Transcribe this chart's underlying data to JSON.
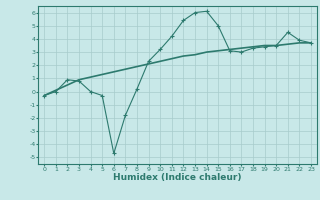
{
  "title": "",
  "xlabel": "Humidex (Indice chaleur)",
  "ylabel": "",
  "x_all": [
    0,
    1,
    2,
    3,
    4,
    5,
    6,
    7,
    8,
    9,
    10,
    11,
    12,
    13,
    14,
    15,
    16,
    17,
    18,
    19,
    20,
    21,
    22,
    23
  ],
  "y_wavy": [
    -0.3,
    0.0,
    0.9,
    0.8,
    0.0,
    -0.3,
    -4.7,
    -1.8,
    0.2,
    2.3,
    3.2,
    4.2,
    5.4,
    6.0,
    6.1,
    5.0,
    3.1,
    3.0,
    3.3,
    3.4,
    3.5,
    4.5,
    3.9,
    3.7
  ],
  "y_linear": [
    -0.3,
    0.1,
    0.5,
    0.9,
    1.1,
    1.3,
    1.5,
    1.7,
    1.9,
    2.1,
    2.3,
    2.5,
    2.7,
    2.8,
    3.0,
    3.1,
    3.2,
    3.3,
    3.4,
    3.5,
    3.5,
    3.6,
    3.7,
    3.7
  ],
  "line_color": "#2d7a6e",
  "bg_color": "#c8e8e8",
  "grid_color": "#a8cccc",
  "tick_color": "#2d7a6e",
  "xlim": [
    -0.5,
    23.5
  ],
  "ylim": [
    -5.5,
    6.5
  ],
  "yticks": [
    -5,
    -4,
    -3,
    -2,
    -1,
    0,
    1,
    2,
    3,
    4,
    5,
    6
  ],
  "xticks": [
    0,
    1,
    2,
    3,
    4,
    5,
    6,
    7,
    8,
    9,
    10,
    11,
    12,
    13,
    14,
    15,
    16,
    17,
    18,
    19,
    20,
    21,
    22,
    23
  ],
  "tick_fontsize": 4.5,
  "xlabel_fontsize": 6.5
}
